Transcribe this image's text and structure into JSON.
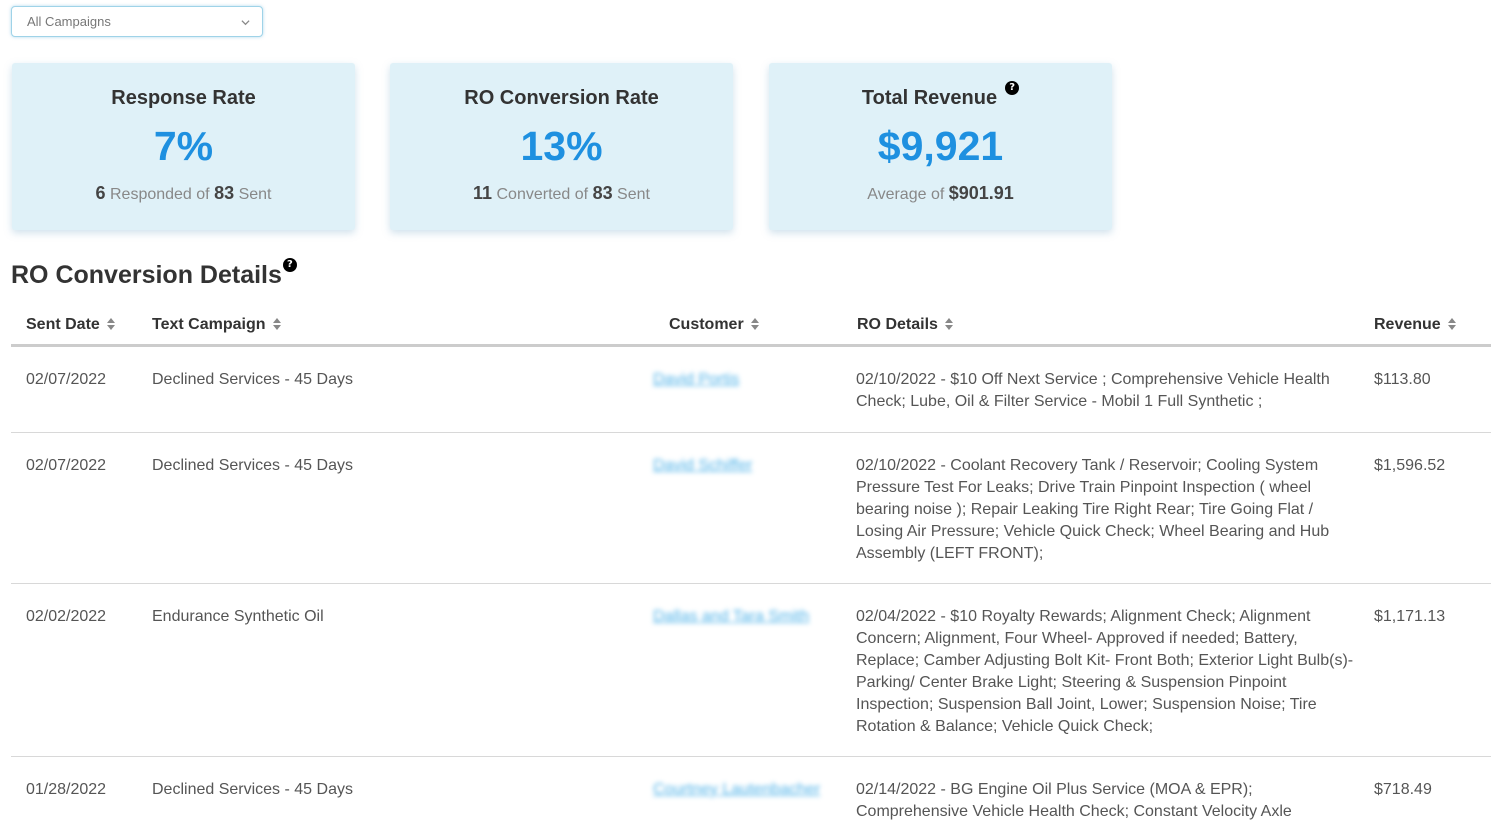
{
  "filter": {
    "selected": "All Campaigns"
  },
  "cards": [
    {
      "title": "Response Rate",
      "value": "7%",
      "sub_num1": "6",
      "sub_text1": "Responded of",
      "sub_num2": "83",
      "sub_text2": "Sent"
    },
    {
      "title": "RO Conversion Rate",
      "value": "13%",
      "sub_num1": "11",
      "sub_text1": "Converted of",
      "sub_num2": "83",
      "sub_text2": "Sent"
    },
    {
      "title": "Total Revenue",
      "value": "$9,921",
      "sub_text1": "Average of",
      "sub_num2": "$901.91",
      "has_help": true
    }
  ],
  "section": {
    "title": "RO Conversion Details"
  },
  "table": {
    "headers": [
      "Sent Date",
      "Text Campaign",
      "Customer",
      "RO Details",
      "Revenue"
    ],
    "rows": [
      {
        "date": "02/07/2022",
        "campaign": "Declined Services - 45 Days",
        "customer": "David Portis",
        "ro": "02/10/2022 - $10 Off Next Service ; Comprehensive Vehicle Health Check; Lube, Oil & Filter Service - Mobil 1 Full Synthetic ;",
        "revenue": "$113.80"
      },
      {
        "date": "02/07/2022",
        "campaign": "Declined Services - 45 Days",
        "customer": "David Schiffer",
        "ro": "02/10/2022 - Coolant Recovery Tank / Reservoir; Cooling System Pressure Test For Leaks; Drive Train Pinpoint Inspection ( wheel bearing noise ); Repair Leaking Tire Right Rear; Tire Going Flat / Losing Air Pressure; Vehicle Quick Check; Wheel Bearing and Hub Assembly (LEFT FRONT);",
        "revenue": "$1,596.52"
      },
      {
        "date": "02/02/2022",
        "campaign": "Endurance Synthetic Oil",
        "customer": "Dallas and Tara Smith",
        "ro": "02/04/2022 - $10 Royalty Rewards; Alignment Check; Alignment Concern; Alignment, Four Wheel- Approved if needed; Battery, Replace; Camber Adjusting Bolt Kit- Front Both; Exterior Light Bulb(s)- Parking/ Center Brake Light; Steering & Suspension Pinpoint Inspection; Suspension Ball Joint, Lower; Suspension Noise; Tire Rotation & Balance; Vehicle Quick Check;",
        "revenue": "$1,171.13"
      },
      {
        "date": "01/28/2022",
        "campaign": "Declined Services - 45 Days",
        "customer": "Courtney Lautenbacher",
        "ro": "02/14/2022 - BG Engine Oil Plus Service (MOA & EPR); Comprehensive Vehicle Health Check; Constant Velocity Axle",
        "revenue": "$718.49"
      }
    ]
  }
}
